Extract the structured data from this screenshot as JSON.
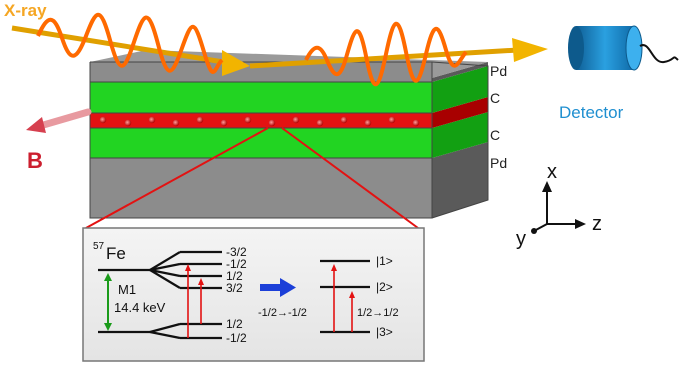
{
  "beam": {
    "label": "X-ray",
    "label_color": "#f5a623",
    "wave_color": "#ff6a00",
    "arrow_color": "#e6a100"
  },
  "detector": {
    "label": "Detector",
    "color": "#1f8fd0"
  },
  "field": {
    "label": "B",
    "color": "#cc1f2f"
  },
  "layers": [
    {
      "label": "Pd",
      "color": "#8c8c8c"
    },
    {
      "label": "C",
      "color": "#22d422"
    },
    {
      "label": "",
      "color": "#e31212"
    },
    {
      "label": "C",
      "color": "#22d422"
    },
    {
      "label": "Pd",
      "color": "#8c8c8c"
    }
  ],
  "axes": {
    "x": "x",
    "y": "y",
    "z": "z"
  },
  "inset": {
    "isotope_mass": "57",
    "isotope_element": "Fe",
    "transition_label": "M1",
    "energy_label": "14.4 keV",
    "excited_levels": [
      "-3/2",
      "-1/2",
      "1/2",
      "3/2"
    ],
    "ground_levels": [
      "1/2",
      "-1/2"
    ],
    "states": [
      "|1>",
      "|2>",
      "|3>"
    ],
    "transition_left": "-1/2→-1/2",
    "transition_right": "1/2→1/2",
    "arrow_color": "#1b3fd8",
    "line_color": "#e31212",
    "m1_color": "#1a9b1a"
  }
}
